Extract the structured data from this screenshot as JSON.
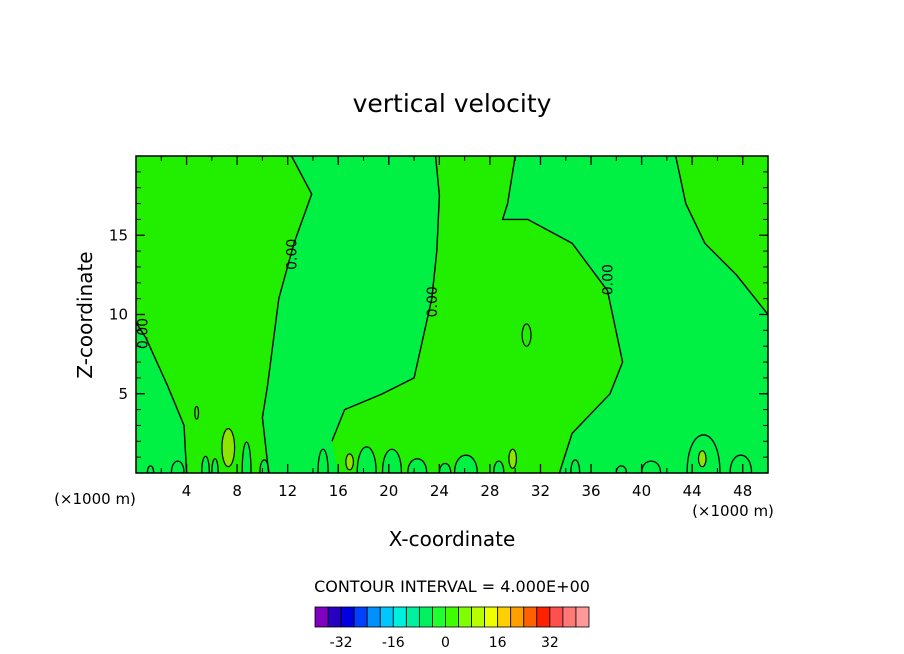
{
  "chart_data": {
    "type": "heatmap",
    "subtype": "filled-contour",
    "title": "vertical velocity",
    "xlabel": "X-coordinate",
    "ylabel": "Z-coordinate",
    "x_unit_label": "(×1000 m)",
    "y_unit_label": "(×1000 m)",
    "xlim": [
      0,
      50
    ],
    "ylim": [
      0,
      20
    ],
    "x_ticks": [
      4,
      8,
      12,
      16,
      20,
      24,
      28,
      32,
      36,
      40,
      44,
      48
    ],
    "y_ticks": [
      5,
      10,
      15
    ],
    "contour_interval_text": "CONTOUR INTERVAL = 4.000E+00",
    "contour_interval": 4,
    "contour_labels": [
      {
        "text": "0.00",
        "x": 12.4,
        "y": 13.8
      },
      {
        "text": "0.00",
        "x": 23.5,
        "y": 10.8
      },
      {
        "text": "0.00",
        "x": 37.4,
        "y": 12.2
      },
      {
        "text": "0.00",
        "x": 0.6,
        "y": 8.8
      }
    ],
    "colorbar": {
      "levels": [
        -36,
        -32,
        -28,
        -24,
        -20,
        -16,
        -12,
        -8,
        -4,
        0,
        4,
        8,
        12,
        16,
        20,
        24,
        28,
        32,
        36
      ],
      "colors": [
        "#8000c0",
        "#2800c0",
        "#0000e0",
        "#0040ff",
        "#0090ff",
        "#00c8ff",
        "#00f0e0",
        "#00f0a0",
        "#00f060",
        "#20ff30",
        "#40ff00",
        "#80ff00",
        "#b8ff00",
        "#f0ff00",
        "#ffd000",
        "#ffa000",
        "#ff6000",
        "#ff2000",
        "#ff5050",
        "#ff7878",
        "#ff9898"
      ],
      "tick_labels": [
        "-32",
        "-16",
        "0",
        "16",
        "32"
      ],
      "tick_values": [
        -32,
        -16,
        0,
        16,
        32
      ]
    },
    "fill_colors": {
      "negative_small": "#00f043",
      "positive_small": "#22ee00",
      "positive_4_to_8": "#8ee600"
    },
    "zero_contours": [
      [
        [
          12.3,
          20
        ],
        [
          13.9,
          17.6
        ],
        [
          12.5,
          14.5
        ],
        [
          11.3,
          11
        ],
        [
          10.4,
          5.5
        ],
        [
          10.0,
          3.5
        ],
        [
          10.5,
          0
        ]
      ],
      [
        [
          23.7,
          20
        ],
        [
          24.0,
          17.5
        ],
        [
          23.8,
          14.0
        ],
        [
          23.4,
          11.0
        ],
        [
          22.0,
          6.0
        ],
        [
          19.5,
          5.0
        ],
        [
          16.5,
          4.0
        ],
        [
          15.5,
          2.0
        ]
      ],
      [
        [
          30.0,
          20
        ],
        [
          29.4,
          17.0
        ],
        [
          29.0,
          16.0
        ],
        [
          31.0,
          16.0
        ],
        [
          34.5,
          14.5
        ],
        [
          37.3,
          11.5
        ],
        [
          38.5,
          7.0
        ],
        [
          37.5,
          5.0
        ],
        [
          34.5,
          2.5
        ],
        [
          33.5,
          0
        ]
      ],
      [
        [
          42.7,
          20
        ],
        [
          43.5,
          17.0
        ],
        [
          45.0,
          14.5
        ],
        [
          47.5,
          12.5
        ],
        [
          50,
          10.0
        ]
      ],
      [
        [
          0,
          9.5
        ],
        [
          0.8,
          8.5
        ],
        [
          2.5,
          5.5
        ],
        [
          3.8,
          3.0
        ],
        [
          4.0,
          0
        ]
      ]
    ],
    "positive_regions": [
      [
        [
          0,
          20
        ],
        [
          12.3,
          20
        ],
        [
          13.9,
          17.6
        ],
        [
          12.5,
          14.5
        ],
        [
          11.3,
          11
        ],
        [
          10.4,
          5.5
        ],
        [
          10.0,
          3.5
        ],
        [
          10.5,
          0
        ],
        [
          4.0,
          0
        ],
        [
          3.8,
          3.0
        ],
        [
          2.5,
          5.5
        ],
        [
          0.8,
          8.5
        ],
        [
          0,
          9.5
        ]
      ],
      [
        [
          30.0,
          20
        ],
        [
          23.7,
          20
        ],
        [
          24.0,
          17.5
        ],
        [
          23.8,
          14.0
        ],
        [
          23.4,
          11.0
        ],
        [
          22.0,
          6.0
        ],
        [
          19.5,
          5.0
        ],
        [
          16.5,
          4.0
        ],
        [
          15.5,
          2.0
        ],
        [
          16.0,
          0
        ],
        [
          33.5,
          0
        ],
        [
          34.5,
          2.5
        ],
        [
          37.5,
          5.0
        ],
        [
          38.5,
          7.0
        ],
        [
          37.3,
          11.5
        ],
        [
          34.5,
          14.5
        ],
        [
          31.0,
          16.0
        ],
        [
          29.0,
          16.0
        ],
        [
          29.4,
          17.0
        ]
      ],
      [
        [
          42.7,
          20
        ],
        [
          50,
          20
        ],
        [
          50,
          10.0
        ],
        [
          47.5,
          12.5
        ],
        [
          45.0,
          14.5
        ],
        [
          43.5,
          17.0
        ]
      ]
    ],
    "small_cells": [
      {
        "x": 7.3,
        "y": 1.6,
        "rx": 0.5,
        "ry": 1.2
      },
      {
        "x": 16.9,
        "y": 0.7,
        "rx": 0.3,
        "ry": 0.5
      },
      {
        "x": 29.8,
        "y": 0.9,
        "rx": 0.3,
        "ry": 0.6
      },
      {
        "x": 44.8,
        "y": 0.9,
        "rx": 0.3,
        "ry": 0.5
      },
      {
        "x": 30.9,
        "y": 8.7,
        "rx": 0.35,
        "ry": 0.7
      },
      {
        "x": 4.8,
        "y": 3.8,
        "rx": 0.15,
        "ry": 0.4
      }
    ],
    "negative_bumps": [
      {
        "x0": 0.9,
        "x1": 1.4,
        "h": 0.6
      },
      {
        "x0": 2.8,
        "x1": 3.8,
        "h": 1.0
      },
      {
        "x0": 5.2,
        "x1": 5.8,
        "h": 1.4
      },
      {
        "x0": 6.0,
        "x1": 6.5,
        "h": 1.2
      },
      {
        "x0": 8.4,
        "x1": 9.1,
        "h": 2.6
      },
      {
        "x0": 9.8,
        "x1": 10.5,
        "h": 1.1
      },
      {
        "x0": 14.4,
        "x1": 15.2,
        "h": 2.0
      },
      {
        "x0": 17.5,
        "x1": 19.0,
        "h": 2.2
      },
      {
        "x0": 19.5,
        "x1": 21.0,
        "h": 2.0
      },
      {
        "x0": 21.5,
        "x1": 23.0,
        "h": 1.2
      },
      {
        "x0": 24.0,
        "x1": 24.9,
        "h": 0.8
      },
      {
        "x0": 25.2,
        "x1": 27.0,
        "h": 1.5
      },
      {
        "x0": 28.3,
        "x1": 29.1,
        "h": 1.0
      },
      {
        "x0": 34.4,
        "x1": 35.1,
        "h": 1.1
      },
      {
        "x0": 38.0,
        "x1": 38.8,
        "h": 0.6
      },
      {
        "x0": 40.0,
        "x1": 41.5,
        "h": 1.0
      },
      {
        "x0": 43.6,
        "x1": 46.2,
        "h": 3.2
      },
      {
        "x0": 47.0,
        "x1": 48.7,
        "h": 1.5
      }
    ]
  }
}
